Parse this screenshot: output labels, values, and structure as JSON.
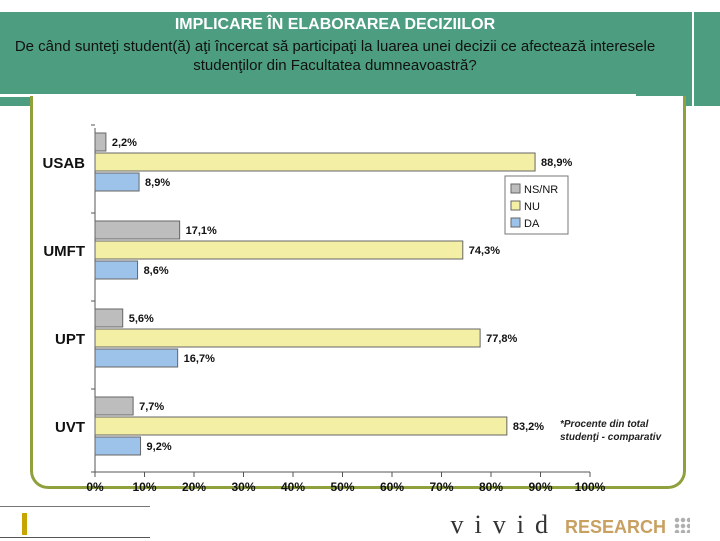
{
  "header": {
    "title": "IMPLICARE ÎN ELABORAREA DECIZIILOR",
    "question": "De când sunteţi student(ă) aţi încercat să participaţi la luarea unei decizii ce afectează interesele studenţilor din Facultatea dumneavoastră?"
  },
  "chart_data": {
    "type": "bar",
    "orientation": "horizontal",
    "categories": [
      "USAB",
      "UMFT",
      "UPT",
      "UVT"
    ],
    "series": [
      {
        "name": "NS/NR",
        "color": "#bdbdbd",
        "values": [
          2.2,
          17.1,
          5.6,
          7.7
        ]
      },
      {
        "name": "NU",
        "color": "#f3f0a6",
        "values": [
          88.9,
          74.3,
          77.8,
          83.2
        ]
      },
      {
        "name": "DA",
        "color": "#9dc3ea",
        "values": [
          8.9,
          8.6,
          16.7,
          9.2
        ]
      }
    ],
    "value_labels": [
      [
        "2,2%",
        "88,9%",
        "8,9%"
      ],
      [
        "17,1%",
        "74,3%",
        "8,6%"
      ],
      [
        "5,6%",
        "77,8%",
        "16,7%"
      ],
      [
        "7,7%",
        "83,2%",
        "9,2%"
      ]
    ],
    "xlim": [
      0,
      100
    ],
    "xticks": [
      "0%",
      "10%",
      "20%",
      "30%",
      "40%",
      "50%",
      "60%",
      "70%",
      "80%",
      "90%",
      "100%"
    ],
    "legend": [
      "NS/NR",
      "NU",
      "DA"
    ],
    "legend_position": "right",
    "note": "*Procente din total studenţi - comparativ"
  },
  "footer": {
    "brand": "vivid",
    "brand_sub": "RESEARCH"
  }
}
